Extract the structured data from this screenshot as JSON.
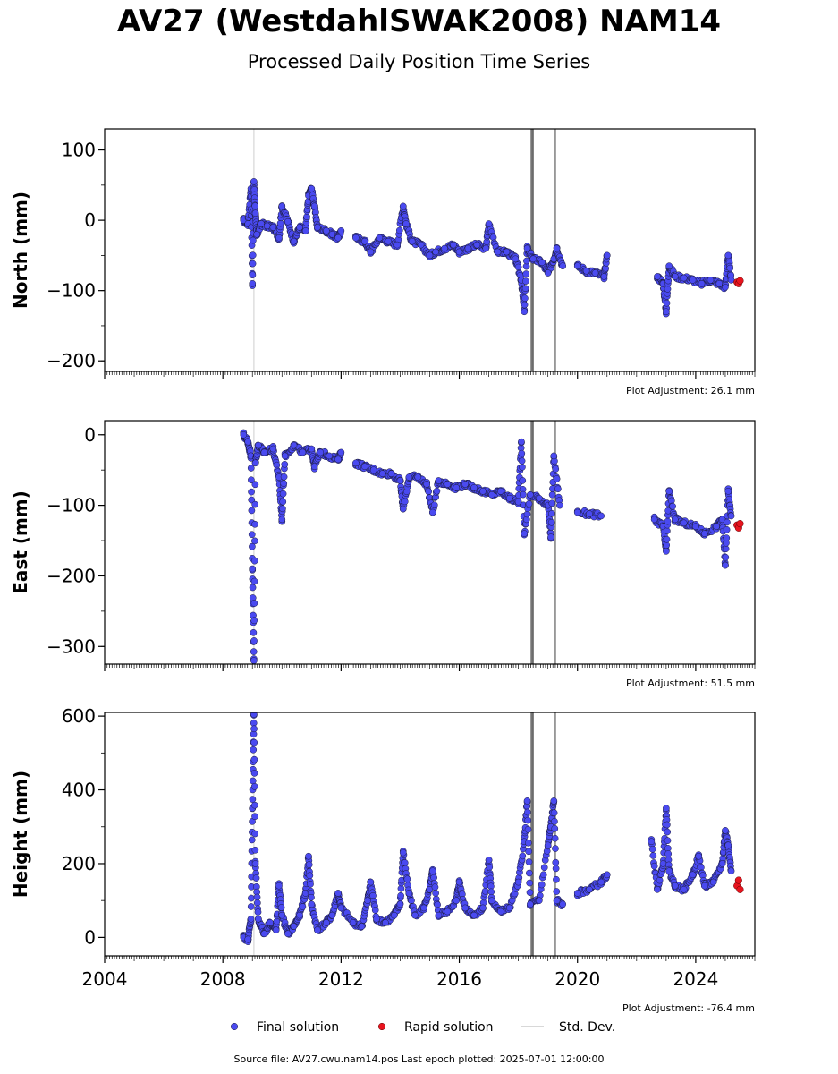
{
  "title": "AV27 (WestdahlSWAK2008) NAM14",
  "subtitle": "Processed Daily Position Time Series",
  "footer": "Source file: AV27.cwu.nam14.pos  Last epoch plotted: 2025-07-01 12:00:00",
  "colors": {
    "final": "#4a4af0",
    "rapid": "#e8141e",
    "stddev": "#cccccc",
    "stddev_dark": "#555555"
  },
  "chart_data": [
    {
      "type": "scatter",
      "ylabel": "North (mm)",
      "adjustment": "Plot Adjustment: 26.1 mm",
      "xlim": [
        2004.0,
        2026.0
      ],
      "ylim": [
        -215,
        130
      ],
      "yticks": [
        100,
        0,
        -100,
        -200
      ],
      "ytick_labels": [
        "100",
        "0",
        "−100",
        "−200"
      ],
      "series": [
        {
          "name": "Final solution",
          "points": [
            [
              2008.7,
              0
            ],
            [
              2008.85,
              -5
            ],
            [
              2008.95,
              45
            ],
            [
              2009.0,
              -90
            ],
            [
              2009.05,
              55
            ],
            [
              2009.1,
              10
            ],
            [
              2009.15,
              -20
            ],
            [
              2009.3,
              -5
            ],
            [
              2009.5,
              -8
            ],
            [
              2009.7,
              -10
            ],
            [
              2009.9,
              -25
            ],
            [
              2010.0,
              20
            ],
            [
              2010.2,
              -2
            ],
            [
              2010.4,
              -30
            ],
            [
              2010.6,
              -10
            ],
            [
              2010.8,
              -15
            ],
            [
              2010.9,
              35
            ],
            [
              2011.0,
              45
            ],
            [
              2011.1,
              20
            ],
            [
              2011.2,
              -10
            ],
            [
              2011.5,
              -15
            ],
            [
              2011.7,
              -20
            ],
            [
              2011.9,
              -25
            ],
            [
              2012.0,
              -15
            ],
            [
              2012.5,
              -25
            ],
            [
              2012.8,
              -30
            ],
            [
              2013.0,
              -45
            ],
            [
              2013.3,
              -25
            ],
            [
              2013.6,
              -30
            ],
            [
              2013.9,
              -35
            ],
            [
              2014.1,
              20
            ],
            [
              2014.2,
              -5
            ],
            [
              2014.4,
              -30
            ],
            [
              2014.7,
              -35
            ],
            [
              2015.0,
              -50
            ],
            [
              2015.2,
              -45
            ],
            [
              2015.5,
              -40
            ],
            [
              2015.8,
              -35
            ],
            [
              2016.0,
              -45
            ],
            [
              2016.3,
              -40
            ],
            [
              2016.6,
              -35
            ],
            [
              2016.9,
              -40
            ],
            [
              2017.0,
              -5
            ],
            [
              2017.3,
              -45
            ],
            [
              2017.6,
              -45
            ],
            [
              2017.9,
              -55
            ],
            [
              2018.1,
              -85
            ],
            [
              2018.2,
              -130
            ],
            [
              2018.3,
              -40
            ],
            [
              2018.5,
              -55
            ],
            [
              2018.8,
              -60
            ],
            [
              2019.0,
              -75
            ],
            [
              2019.2,
              -55
            ],
            [
              2019.3,
              -40
            ],
            [
              2019.5,
              -65
            ],
            [
              2020.0,
              -65
            ],
            [
              2020.3,
              -72
            ],
            [
              2020.6,
              -75
            ],
            [
              2020.9,
              -80
            ],
            [
              2021.0,
              -50
            ],
            [
              2022.7,
              -80
            ],
            [
              2022.9,
              -90
            ],
            [
              2023.0,
              -130
            ],
            [
              2023.1,
              -65
            ],
            [
              2023.3,
              -80
            ],
            [
              2023.6,
              -82
            ],
            [
              2023.9,
              -85
            ],
            [
              2024.2,
              -90
            ],
            [
              2024.5,
              -85
            ],
            [
              2024.8,
              -90
            ],
            [
              2025.0,
              -95
            ],
            [
              2025.1,
              -50
            ],
            [
              2025.2,
              -85
            ]
          ]
        },
        {
          "name": "Rapid solution",
          "points": [
            [
              2025.4,
              -88
            ],
            [
              2025.45,
              -90
            ],
            [
              2025.5,
              -86
            ]
          ]
        }
      ]
    },
    {
      "type": "scatter",
      "ylabel": "East (mm)",
      "adjustment": "Plot Adjustment: 51.5 mm",
      "xlim": [
        2004.0,
        2026.0
      ],
      "ylim": [
        -325,
        20
      ],
      "yticks": [
        0,
        -100,
        -200,
        -300
      ],
      "ytick_labels": [
        "0",
        "−100",
        "−200",
        "−300"
      ],
      "series": [
        {
          "name": "Final solution",
          "points": [
            [
              2008.7,
              0
            ],
            [
              2008.85,
              -10
            ],
            [
              2008.95,
              -30
            ],
            [
              2009.0,
              -190
            ],
            [
              2009.05,
              -320
            ],
            [
              2009.1,
              -40
            ],
            [
              2009.2,
              -15
            ],
            [
              2009.4,
              -25
            ],
            [
              2009.7,
              -20
            ],
            [
              2009.9,
              -60
            ],
            [
              2010.0,
              -120
            ],
            [
              2010.1,
              -30
            ],
            [
              2010.4,
              -15
            ],
            [
              2010.7,
              -25
            ],
            [
              2011.0,
              -20
            ],
            [
              2011.1,
              -45
            ],
            [
              2011.3,
              -25
            ],
            [
              2011.6,
              -30
            ],
            [
              2011.9,
              -35
            ],
            [
              2012.0,
              -25
            ],
            [
              2012.5,
              -40
            ],
            [
              2012.8,
              -45
            ],
            [
              2013.1,
              -50
            ],
            [
              2013.4,
              -55
            ],
            [
              2013.7,
              -55
            ],
            [
              2014.0,
              -65
            ],
            [
              2014.1,
              -105
            ],
            [
              2014.3,
              -60
            ],
            [
              2014.6,
              -60
            ],
            [
              2014.9,
              -70
            ],
            [
              2015.1,
              -110
            ],
            [
              2015.3,
              -65
            ],
            [
              2015.6,
              -70
            ],
            [
              2015.9,
              -75
            ],
            [
              2016.2,
              -70
            ],
            [
              2016.5,
              -75
            ],
            [
              2016.8,
              -80
            ],
            [
              2017.1,
              -85
            ],
            [
              2017.4,
              -80
            ],
            [
              2017.7,
              -90
            ],
            [
              2018.0,
              -95
            ],
            [
              2018.1,
              -10
            ],
            [
              2018.2,
              -140
            ],
            [
              2018.4,
              -85
            ],
            [
              2018.7,
              -90
            ],
            [
              2019.0,
              -100
            ],
            [
              2019.1,
              -145
            ],
            [
              2019.2,
              -30
            ],
            [
              2019.4,
              -100
            ],
            [
              2020.0,
              -110
            ],
            [
              2020.4,
              -112
            ],
            [
              2020.8,
              -115
            ],
            [
              2022.6,
              -120
            ],
            [
              2022.9,
              -130
            ],
            [
              2023.0,
              -165
            ],
            [
              2023.1,
              -80
            ],
            [
              2023.3,
              -120
            ],
            [
              2023.6,
              -125
            ],
            [
              2024.0,
              -130
            ],
            [
              2024.3,
              -140
            ],
            [
              2024.7,
              -130
            ],
            [
              2024.9,
              -120
            ],
            [
              2025.0,
              -185
            ],
            [
              2025.1,
              -80
            ],
            [
              2025.2,
              -115
            ]
          ]
        },
        {
          "name": "Rapid solution",
          "points": [
            [
              2025.4,
              -128
            ],
            [
              2025.45,
              -132
            ],
            [
              2025.5,
              -126
            ]
          ]
        }
      ]
    },
    {
      "type": "scatter",
      "ylabel": "Height (mm)",
      "adjustment": "Plot Adjustment: -76.4 mm",
      "xlim": [
        2004.0,
        2026.0
      ],
      "ylim": [
        -50,
        610
      ],
      "xticks": [
        2004,
        2008,
        2012,
        2016,
        2020,
        2024
      ],
      "xtick_labels": [
        "2004",
        "2008",
        "2012",
        "2016",
        "2020",
        "2024"
      ],
      "yticks": [
        0,
        200,
        400,
        600
      ],
      "ytick_labels": [
        "0",
        "200",
        "400",
        "600"
      ],
      "series": [
        {
          "name": "Final solution",
          "points": [
            [
              2008.7,
              0
            ],
            [
              2008.85,
              -5
            ],
            [
              2008.95,
              50
            ],
            [
              2009.0,
              350
            ],
            [
              2009.05,
              605
            ],
            [
              2009.1,
              200
            ],
            [
              2009.2,
              50
            ],
            [
              2009.4,
              10
            ],
            [
              2009.6,
              40
            ],
            [
              2009.8,
              20
            ],
            [
              2009.9,
              140
            ],
            [
              2010.0,
              60
            ],
            [
              2010.2,
              10
            ],
            [
              2010.4,
              30
            ],
            [
              2010.6,
              60
            ],
            [
              2010.8,
              120
            ],
            [
              2010.9,
              220
            ],
            [
              2011.0,
              90
            ],
            [
              2011.2,
              20
            ],
            [
              2011.5,
              40
            ],
            [
              2011.7,
              60
            ],
            [
              2011.9,
              120
            ],
            [
              2012.0,
              80
            ],
            [
              2012.4,
              40
            ],
            [
              2012.7,
              30
            ],
            [
              2012.9,
              100
            ],
            [
              2013.0,
              150
            ],
            [
              2013.2,
              50
            ],
            [
              2013.5,
              40
            ],
            [
              2013.8,
              60
            ],
            [
              2014.0,
              90
            ],
            [
              2014.1,
              230
            ],
            [
              2014.3,
              120
            ],
            [
              2014.5,
              60
            ],
            [
              2014.8,
              80
            ],
            [
              2015.0,
              130
            ],
            [
              2015.1,
              180
            ],
            [
              2015.3,
              60
            ],
            [
              2015.6,
              70
            ],
            [
              2015.9,
              100
            ],
            [
              2016.0,
              150
            ],
            [
              2016.2,
              80
            ],
            [
              2016.5,
              60
            ],
            [
              2016.8,
              80
            ],
            [
              2017.0,
              210
            ],
            [
              2017.1,
              100
            ],
            [
              2017.4,
              70
            ],
            [
              2017.7,
              80
            ],
            [
              2018.0,
              150
            ],
            [
              2018.2,
              260
            ],
            [
              2018.3,
              370
            ],
            [
              2018.4,
              90
            ],
            [
              2018.7,
              100
            ],
            [
              2019.0,
              250
            ],
            [
              2019.1,
              300
            ],
            [
              2019.2,
              370
            ],
            [
              2019.3,
              100
            ],
            [
              2019.5,
              90
            ],
            [
              2020.0,
              120
            ],
            [
              2020.4,
              130
            ],
            [
              2020.8,
              150
            ],
            [
              2021.0,
              170
            ],
            [
              2022.5,
              260
            ],
            [
              2022.7,
              130
            ],
            [
              2022.9,
              200
            ],
            [
              2023.0,
              350
            ],
            [
              2023.1,
              180
            ],
            [
              2023.3,
              140
            ],
            [
              2023.6,
              130
            ],
            [
              2023.9,
              170
            ],
            [
              2024.1,
              220
            ],
            [
              2024.3,
              140
            ],
            [
              2024.6,
              150
            ],
            [
              2024.9,
              200
            ],
            [
              2025.0,
              290
            ],
            [
              2025.1,
              250
            ],
            [
              2025.2,
              180
            ]
          ]
        },
        {
          "name": "Rapid solution",
          "points": [
            [
              2025.4,
              140
            ],
            [
              2025.45,
              155
            ],
            [
              2025.5,
              130
            ]
          ]
        }
      ]
    }
  ],
  "legend": [
    {
      "key": "final",
      "label": "Final solution"
    },
    {
      "key": "rapid",
      "label": "Rapid solution"
    },
    {
      "key": "stddev",
      "label": "Std. Dev."
    }
  ]
}
